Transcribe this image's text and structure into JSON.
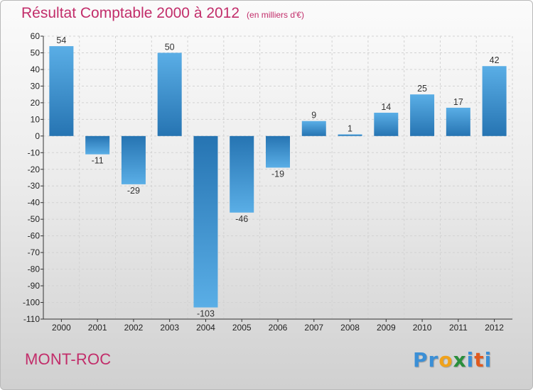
{
  "header": {
    "title": "Résultat Comptable 2000 à 2012",
    "subtitle": "(en milliers d'€)"
  },
  "footer": {
    "city": "MONT-ROC",
    "logo_letters": [
      {
        "char": "P",
        "color": "#3b8fd6"
      },
      {
        "char": "r",
        "color": "#3b8fd6"
      },
      {
        "char": "o",
        "color": "#f0a21b"
      },
      {
        "char": "x",
        "color": "#2a8f3c"
      },
      {
        "char": "i",
        "color": "#3b8fd6"
      },
      {
        "char": "t",
        "color": "#e05a1f"
      },
      {
        "char": "i",
        "color": "#3b8fd6"
      }
    ]
  },
  "colors": {
    "title": "#c22d6a",
    "bar_dark": "#2674b2",
    "bar_light": "#5aaee6",
    "grid": "#d2d2d2"
  },
  "chart_data": {
    "type": "bar",
    "title": "Résultat Comptable 2000 à 2012",
    "subtitle": "(en milliers d'€)",
    "categories": [
      "2000",
      "2001",
      "2002",
      "2003",
      "2004",
      "2005",
      "2006",
      "2007",
      "2008",
      "2009",
      "2010",
      "2011",
      "2012"
    ],
    "values": [
      54,
      -11,
      -29,
      50,
      -103,
      -46,
      -19,
      9,
      1,
      14,
      25,
      17,
      42
    ],
    "ylim": [
      -110,
      60
    ],
    "yticks": [
      60,
      50,
      40,
      30,
      20,
      10,
      0,
      -10,
      -20,
      -30,
      -40,
      -50,
      -60,
      -70,
      -80,
      -90,
      -100,
      -110
    ],
    "grid": true,
    "legend": "none",
    "xlabel": "",
    "ylabel": ""
  }
}
